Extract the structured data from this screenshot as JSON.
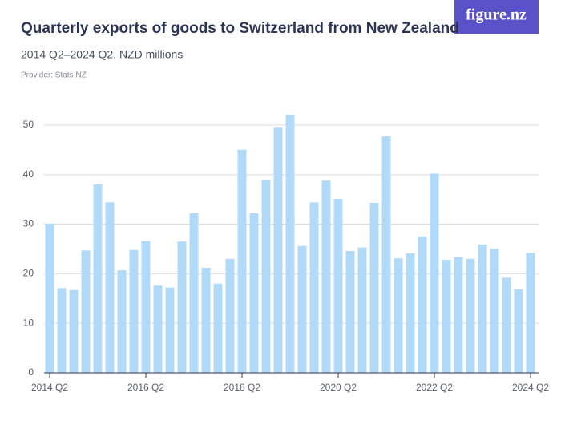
{
  "logo": "figure.nz",
  "chart_data": {
    "type": "bar",
    "title": "Quarterly exports of goods to Switzerland from New Zealand",
    "subtitle": "2014 Q2–2024 Q2, NZD millions",
    "provider": "Provider: Stats NZ",
    "categories": [
      "2014 Q2",
      null,
      null,
      null,
      null,
      null,
      null,
      null,
      "2016 Q2",
      null,
      null,
      null,
      null,
      null,
      null,
      null,
      "2018 Q2",
      null,
      null,
      null,
      null,
      null,
      null,
      null,
      "2020 Q2",
      null,
      null,
      null,
      null,
      null,
      null,
      null,
      "2022 Q2",
      null,
      null,
      null,
      null,
      null,
      null,
      null,
      "2024 Q2"
    ],
    "values": [
      30.1,
      17.1,
      16.7,
      24.7,
      38.0,
      34.4,
      20.7,
      24.8,
      26.6,
      17.6,
      17.2,
      26.5,
      32.2,
      21.2,
      18.0,
      23.0,
      45.0,
      32.2,
      39.0,
      49.6,
      52.0,
      25.6,
      34.4,
      38.8,
      35.1,
      24.6,
      25.3,
      34.3,
      47.7,
      23.1,
      24.1,
      27.5,
      40.2,
      22.8,
      23.4,
      23.0,
      25.9,
      25.0,
      19.2,
      16.9,
      24.2
    ],
    "color": "#b1daf8",
    "ylim": [
      0,
      55
    ],
    "yticks": [
      0,
      10,
      20,
      30,
      40,
      50
    ],
    "grid": true
  }
}
